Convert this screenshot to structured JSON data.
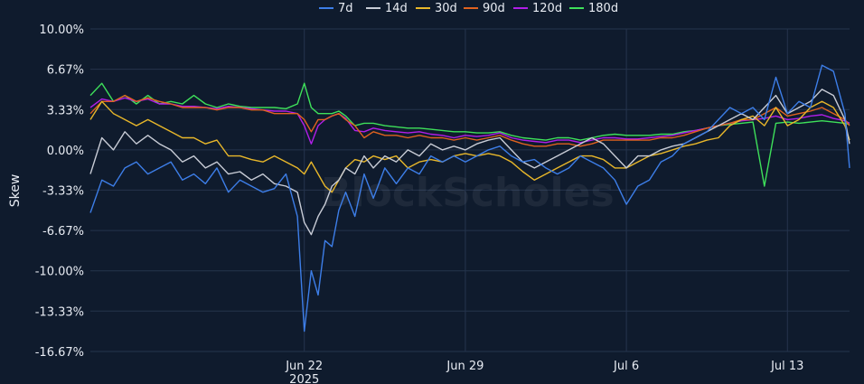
{
  "chart_data": {
    "type": "line",
    "title": "",
    "xlabel": "",
    "ylabel": "Skew",
    "ylim": [
      -16.67,
      10.0
    ],
    "y_ticks": [
      10.0,
      6.67,
      3.33,
      0.0,
      -3.33,
      -6.67,
      -10.0,
      -13.33,
      -16.67
    ],
    "y_tick_labels": [
      "10.00%",
      "6.67%",
      "3.33%",
      "0.00%",
      "-3.33%",
      "-6.67%",
      "-10.00%",
      "-13.33%",
      "-16.67%"
    ],
    "x_unit": "days since Jun 22, 2025",
    "xlim": [
      -9.3,
      23.7
    ],
    "x_ticks": [
      {
        "x": 0,
        "label": "Jun 22",
        "sublabel": "2025"
      },
      {
        "x": 7,
        "label": "Jun 29",
        "sublabel": ""
      },
      {
        "x": 14,
        "label": "Jul 6",
        "sublabel": ""
      },
      {
        "x": 21,
        "label": "Jul 13",
        "sublabel": ""
      }
    ],
    "grid": true,
    "legend_position": "top-center",
    "watermark": "BlockScholes",
    "series": [
      {
        "name": "7d",
        "color": "#3d7ee8",
        "x": [
          -9.3,
          -8.8,
          -8.3,
          -7.8,
          -7.3,
          -6.8,
          -6.3,
          -5.8,
          -5.3,
          -4.8,
          -4.3,
          -3.8,
          -3.3,
          -2.8,
          -2.3,
          -1.8,
          -1.3,
          -0.8,
          -0.3,
          0,
          0.3,
          0.6,
          0.9,
          1.2,
          1.5,
          1.8,
          2.2,
          2.6,
          3.0,
          3.5,
          4.0,
          4.5,
          5.0,
          5.5,
          6.0,
          6.5,
          7.0,
          7.5,
          8.0,
          8.5,
          9.0,
          9.5,
          10.0,
          10.5,
          11.0,
          11.5,
          12.0,
          12.5,
          13.0,
          13.5,
          14.0,
          14.5,
          15.0,
          15.5,
          16.0,
          16.5,
          17.0,
          17.5,
          18.0,
          18.5,
          19.0,
          19.5,
          20.0,
          20.5,
          21.0,
          21.5,
          22.0,
          22.5,
          23.0,
          23.5,
          23.7
        ],
        "y": [
          -5.2,
          -2.5,
          -3.0,
          -1.5,
          -1.0,
          -2.0,
          -1.5,
          -1.0,
          -2.5,
          -2.0,
          -2.8,
          -1.5,
          -3.5,
          -2.5,
          -3.0,
          -3.5,
          -3.2,
          -2.0,
          -5.5,
          -15.0,
          -10.0,
          -12.0,
          -7.5,
          -8.0,
          -5.0,
          -3.5,
          -5.5,
          -2.0,
          -4.0,
          -1.5,
          -2.8,
          -1.5,
          -2.0,
          -0.5,
          -1.0,
          -0.5,
          -1.0,
          -0.5,
          0.0,
          0.3,
          -0.5,
          -1.0,
          -0.8,
          -1.5,
          -2.0,
          -1.5,
          -0.5,
          -1.0,
          -1.5,
          -2.5,
          -4.5,
          -3.0,
          -2.5,
          -1.0,
          -0.5,
          0.5,
          1.0,
          1.5,
          2.5,
          3.5,
          3.0,
          3.5,
          2.5,
          6.0,
          3.0,
          4.0,
          3.5,
          7.0,
          6.5,
          3.0,
          -1.5
        ]
      },
      {
        "name": "14d",
        "color": "#c8ccd6",
        "x": [
          -9.3,
          -8.8,
          -8.3,
          -7.8,
          -7.3,
          -6.8,
          -6.3,
          -5.8,
          -5.3,
          -4.8,
          -4.3,
          -3.8,
          -3.3,
          -2.8,
          -2.3,
          -1.8,
          -1.3,
          -0.8,
          -0.3,
          0,
          0.3,
          0.6,
          0.9,
          1.2,
          1.5,
          1.8,
          2.2,
          2.6,
          3.0,
          3.5,
          4.0,
          4.5,
          5.0,
          5.5,
          6.0,
          6.5,
          7.0,
          7.5,
          8.0,
          8.5,
          9.0,
          9.5,
          10.0,
          10.5,
          11.0,
          11.5,
          12.0,
          12.5,
          13.0,
          13.5,
          14.0,
          14.5,
          15.0,
          15.5,
          16.0,
          16.5,
          17.0,
          17.5,
          18.0,
          18.5,
          19.0,
          19.5,
          20.0,
          20.5,
          21.0,
          21.5,
          22.0,
          22.5,
          23.0,
          23.5,
          23.7
        ],
        "y": [
          -2.0,
          1.0,
          0.0,
          1.5,
          0.5,
          1.2,
          0.5,
          0.0,
          -1.0,
          -0.5,
          -1.5,
          -1.0,
          -2.0,
          -1.8,
          -2.5,
          -2.0,
          -2.8,
          -3.0,
          -3.5,
          -6.0,
          -7.0,
          -5.5,
          -4.5,
          -3.0,
          -2.5,
          -1.5,
          -2.0,
          -0.5,
          -1.5,
          -0.5,
          -1.0,
          0.0,
          -0.5,
          0.5,
          0.0,
          0.3,
          0.0,
          0.5,
          0.8,
          1.0,
          0.0,
          -1.0,
          -1.5,
          -1.0,
          -0.5,
          0.0,
          0.5,
          1.0,
          0.5,
          -0.5,
          -1.5,
          -0.5,
          -0.5,
          0.0,
          0.3,
          0.5,
          1.0,
          1.5,
          2.0,
          2.5,
          3.0,
          2.5,
          3.5,
          4.5,
          3.0,
          3.5,
          4.0,
          5.0,
          4.5,
          2.5,
          0.5
        ]
      },
      {
        "name": "30d",
        "color": "#e8b72a",
        "x": [
          -9.3,
          -8.8,
          -8.3,
          -7.8,
          -7.3,
          -6.8,
          -6.3,
          -5.8,
          -5.3,
          -4.8,
          -4.3,
          -3.8,
          -3.3,
          -2.8,
          -2.3,
          -1.8,
          -1.3,
          -0.8,
          -0.3,
          0,
          0.3,
          0.6,
          0.9,
          1.2,
          1.5,
          1.8,
          2.2,
          2.6,
          3.0,
          3.5,
          4.0,
          4.5,
          5.0,
          5.5,
          6.0,
          6.5,
          7.0,
          7.5,
          8.0,
          8.5,
          9.0,
          9.5,
          10.0,
          10.5,
          11.0,
          11.5,
          12.0,
          12.5,
          13.0,
          13.5,
          14.0,
          14.5,
          15.0,
          15.5,
          16.0,
          16.5,
          17.0,
          17.5,
          18.0,
          18.5,
          19.0,
          19.5,
          20.0,
          20.5,
          21.0,
          21.5,
          22.0,
          22.5,
          23.0,
          23.5,
          23.7
        ],
        "y": [
          2.5,
          4.0,
          3.0,
          2.5,
          2.0,
          2.5,
          2.0,
          1.5,
          1.0,
          1.0,
          0.5,
          0.8,
          -0.5,
          -0.5,
          -0.8,
          -1.0,
          -0.5,
          -1.0,
          -1.5,
          -2.0,
          -1.0,
          -2.0,
          -3.0,
          -3.5,
          -2.5,
          -1.5,
          -0.8,
          -1.0,
          -0.5,
          -0.8,
          -0.5,
          -1.5,
          -1.0,
          -0.8,
          -1.0,
          -0.5,
          -0.3,
          -0.5,
          -0.3,
          -0.5,
          -1.0,
          -1.8,
          -2.5,
          -2.0,
          -1.5,
          -1.0,
          -0.5,
          -0.5,
          -0.8,
          -1.5,
          -1.5,
          -1.0,
          -0.5,
          -0.3,
          0.0,
          0.3,
          0.5,
          0.8,
          1.0,
          2.0,
          2.5,
          2.8,
          2.0,
          3.5,
          2.0,
          2.5,
          3.5,
          4.0,
          3.5,
          2.0,
          0.8
        ]
      },
      {
        "name": "90d",
        "color": "#e0621f",
        "x": [
          -9.3,
          -8.8,
          -8.3,
          -7.8,
          -7.3,
          -6.8,
          -6.3,
          -5.8,
          -5.3,
          -4.8,
          -4.3,
          -3.8,
          -3.3,
          -2.8,
          -2.3,
          -1.8,
          -1.3,
          -0.8,
          -0.3,
          0,
          0.3,
          0.6,
          0.9,
          1.2,
          1.5,
          1.8,
          2.2,
          2.6,
          3.0,
          3.5,
          4.0,
          4.5,
          5.0,
          5.5,
          6.0,
          6.5,
          7.0,
          7.5,
          8.0,
          8.5,
          9.0,
          9.5,
          10.0,
          10.5,
          11.0,
          11.5,
          12.0,
          12.5,
          13.0,
          13.5,
          14.0,
          14.5,
          15.0,
          15.5,
          16.0,
          16.5,
          17.0,
          17.5,
          18.0,
          18.5,
          19.0,
          19.5,
          20.0,
          20.5,
          21.0,
          21.5,
          22.0,
          22.5,
          23.0,
          23.5,
          23.7
        ],
        "y": [
          3.0,
          4.0,
          4.0,
          4.5,
          4.0,
          4.3,
          4.0,
          3.8,
          3.5,
          3.5,
          3.5,
          3.3,
          3.5,
          3.5,
          3.3,
          3.3,
          3.0,
          3.0,
          3.0,
          2.5,
          1.5,
          2.5,
          2.5,
          2.8,
          3.0,
          2.5,
          2.0,
          1.0,
          1.5,
          1.2,
          1.2,
          1.0,
          1.2,
          1.0,
          1.0,
          0.8,
          1.0,
          0.8,
          1.0,
          1.2,
          0.8,
          0.5,
          0.3,
          0.3,
          0.5,
          0.5,
          0.3,
          0.5,
          0.8,
          0.8,
          0.8,
          0.8,
          0.8,
          1.0,
          1.0,
          1.2,
          1.5,
          1.8,
          2.0,
          2.2,
          2.5,
          2.5,
          3.0,
          3.5,
          2.8,
          3.0,
          3.2,
          3.5,
          3.0,
          2.5,
          2.0
        ]
      },
      {
        "name": "120d",
        "color": "#b11ee8",
        "x": [
          -9.3,
          -8.8,
          -8.3,
          -7.8,
          -7.3,
          -6.8,
          -6.3,
          -5.8,
          -5.3,
          -4.8,
          -4.3,
          -3.8,
          -3.3,
          -2.8,
          -2.3,
          -1.8,
          -1.3,
          -0.8,
          -0.3,
          0,
          0.3,
          0.6,
          0.9,
          1.2,
          1.5,
          1.8,
          2.2,
          2.6,
          3.0,
          3.5,
          4.0,
          4.5,
          5.0,
          5.5,
          6.0,
          6.5,
          7.0,
          7.5,
          8.0,
          8.5,
          9.0,
          9.5,
          10.0,
          10.5,
          11.0,
          11.5,
          12.0,
          12.5,
          13.0,
          13.5,
          14.0,
          14.5,
          15.0,
          15.5,
          16.0,
          16.5,
          17.0,
          17.5,
          18.0,
          18.5,
          19.0,
          19.5,
          20.0,
          20.5,
          21.0,
          21.5,
          22.0,
          22.5,
          23.0,
          23.5,
          23.7
        ],
        "y": [
          3.5,
          4.2,
          4.0,
          4.3,
          4.0,
          4.2,
          3.8,
          3.8,
          3.6,
          3.6,
          3.5,
          3.4,
          3.6,
          3.5,
          3.4,
          3.3,
          3.2,
          3.2,
          3.0,
          2.0,
          0.5,
          2.0,
          2.5,
          2.8,
          3.0,
          2.6,
          1.6,
          1.5,
          1.8,
          1.6,
          1.5,
          1.4,
          1.5,
          1.3,
          1.2,
          1.0,
          1.2,
          1.1,
          1.2,
          1.4,
          1.0,
          0.8,
          0.7,
          0.6,
          0.8,
          0.8,
          0.6,
          0.8,
          1.0,
          1.0,
          0.9,
          0.9,
          1.0,
          1.1,
          1.2,
          1.4,
          1.6,
          1.8,
          2.0,
          2.2,
          2.4,
          2.5,
          2.6,
          2.8,
          2.5,
          2.6,
          2.8,
          2.9,
          2.6,
          2.4,
          2.2
        ]
      },
      {
        "name": "180d",
        "color": "#3ee05a",
        "x": [
          -9.3,
          -8.8,
          -8.3,
          -7.8,
          -7.3,
          -6.8,
          -6.3,
          -5.8,
          -5.3,
          -4.8,
          -4.3,
          -3.8,
          -3.3,
          -2.8,
          -2.3,
          -1.8,
          -1.3,
          -0.8,
          -0.3,
          0,
          0.3,
          0.6,
          0.9,
          1.2,
          1.5,
          1.8,
          2.2,
          2.6,
          3.0,
          3.5,
          4.0,
          4.5,
          5.0,
          5.5,
          6.0,
          6.5,
          7.0,
          7.5,
          8.0,
          8.5,
          9.0,
          9.5,
          10.0,
          10.5,
          11.0,
          11.5,
          12.0,
          12.5,
          13.0,
          13.5,
          14.0,
          14.5,
          15.0,
          15.5,
          16.0,
          16.5,
          17.0,
          17.5,
          18.0,
          18.5,
          19.0,
          19.5,
          20.0,
          20.5,
          21.0,
          21.5,
          22.0,
          22.5,
          23.0,
          23.5,
          23.7
        ],
        "y": [
          4.5,
          5.5,
          4.0,
          4.5,
          3.8,
          4.5,
          3.8,
          4.0,
          3.8,
          4.5,
          3.8,
          3.5,
          3.8,
          3.6,
          3.5,
          3.5,
          3.5,
          3.4,
          3.8,
          5.5,
          3.5,
          3.0,
          3.0,
          3.0,
          3.2,
          2.8,
          2.0,
          2.2,
          2.2,
          2.0,
          1.9,
          1.8,
          1.8,
          1.7,
          1.6,
          1.5,
          1.5,
          1.4,
          1.4,
          1.5,
          1.2,
          1.0,
          0.9,
          0.8,
          1.0,
          1.0,
          0.8,
          1.0,
          1.2,
          1.3,
          1.2,
          1.2,
          1.2,
          1.3,
          1.3,
          1.5,
          1.6,
          1.8,
          2.0,
          2.1,
          2.2,
          2.3,
          -3.0,
          2.2,
          2.3,
          2.2,
          2.3,
          2.4,
          2.3,
          2.2,
          2.1
        ]
      }
    ]
  }
}
